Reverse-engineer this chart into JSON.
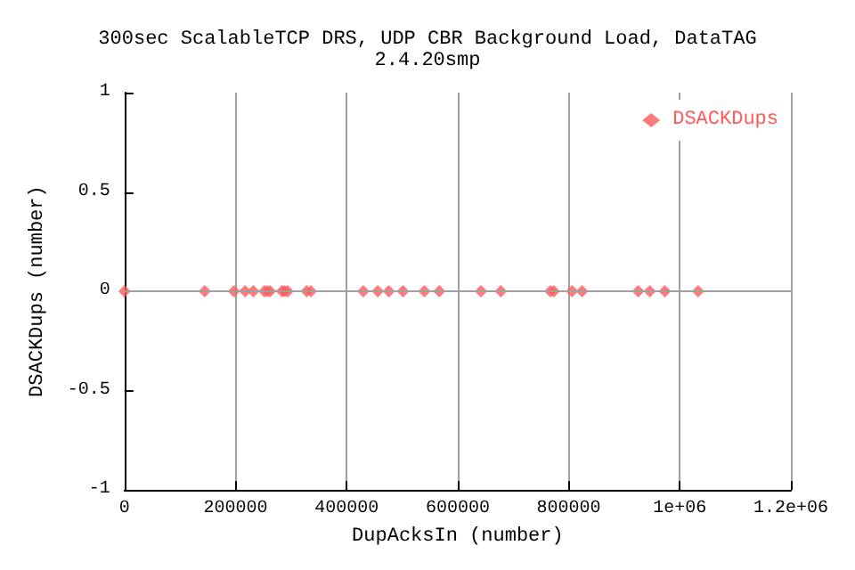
{
  "chart_data": {
    "type": "scatter",
    "title": "300sec ScalableTCP DRS, UDP CBR Background Load, DataTAG",
    "subtitle": "2.4.20smp",
    "xlabel": "DupAcksIn (number)",
    "ylabel": "DSACKDups (number)",
    "x": [
      0,
      144500,
      197000,
      217000,
      232000,
      252000,
      257000,
      262000,
      283600,
      288600,
      293700,
      328000,
      335500,
      430000,
      456000,
      476000,
      501500,
      540000,
      567000,
      642000,
      677600,
      767000,
      773000,
      806000,
      824000,
      925000,
      946000,
      973000,
      1033000
    ],
    "series": [
      {
        "name": "DSACKDups",
        "color": "#ff5a5a",
        "values": [
          0,
          0,
          0,
          0,
          0,
          0,
          0,
          0,
          0,
          0,
          0,
          0,
          0,
          0,
          0,
          0,
          0,
          0,
          0,
          0,
          0,
          0,
          0,
          0,
          0,
          0,
          0,
          0,
          0
        ]
      }
    ],
    "xlim": [
      0,
      1200000
    ],
    "xticks": [
      0,
      200000,
      400000,
      600000,
      800000,
      {
        "value": 1000000,
        "label": "1e+06"
      },
      {
        "value": 1200000,
        "label": "1.2e+06"
      }
    ],
    "ylim": [
      -1,
      1
    ],
    "yticks": [
      -1,
      -0.5,
      0,
      0.5,
      1
    ],
    "grid": "x",
    "legend": "top right",
    "marker": "diamond",
    "ref_lines": [
      {
        "axis": "y",
        "value": 0,
        "color": "#a0a0a0"
      }
    ]
  }
}
